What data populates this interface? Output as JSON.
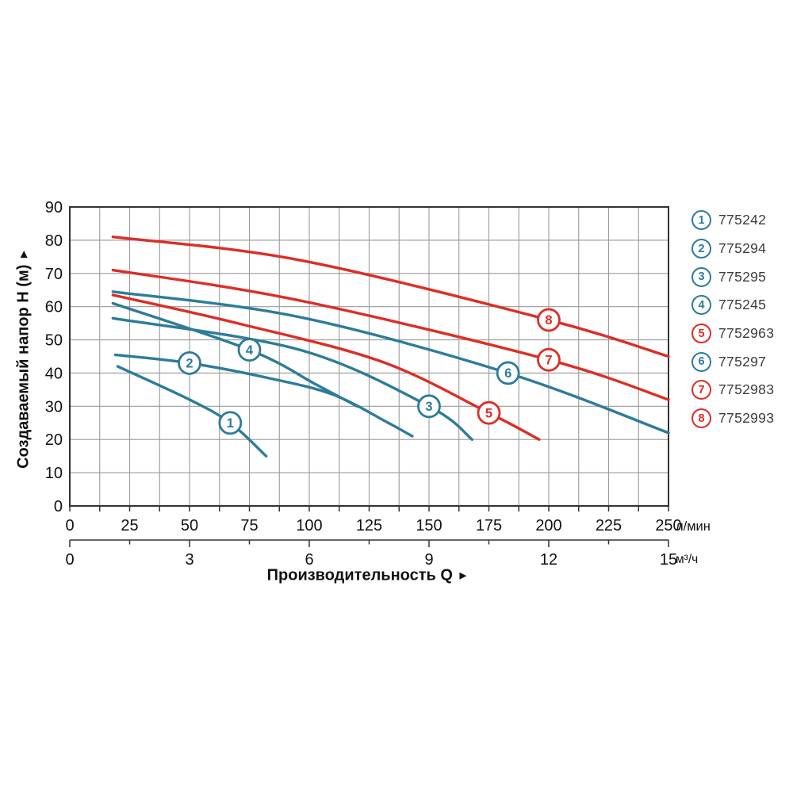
{
  "colors": {
    "teal": "#2d7c99",
    "red": "#dd2d26",
    "grid": "#9a9a9a",
    "axis": "#333333",
    "tick_text": "#111111",
    "legend_text": "#3b3b3b"
  },
  "chart_data": {
    "type": "line",
    "title": "",
    "x_axis": {
      "label": "Производительность Q",
      "arrow": "►",
      "unit_primary": "л/мин",
      "unit_secondary": "м³/ч",
      "range_lmin": [
        0,
        250
      ],
      "ticks_lmin": [
        0,
        25,
        50,
        75,
        100,
        125,
        150,
        175,
        200,
        225,
        250
      ],
      "minor_step_lmin": 12.5,
      "range_m3h": [
        0,
        15
      ],
      "ticks_m3h": [
        0,
        3,
        6,
        9,
        12,
        15
      ],
      "minor_step_m3h": 1.5,
      "grid": true
    },
    "y_axis": {
      "label": "Создаваемый напор H (м)",
      "arrow": "►",
      "range": [
        0,
        90
      ],
      "ticks": [
        0,
        10,
        20,
        30,
        40,
        50,
        60,
        70,
        80,
        90
      ],
      "grid": true
    },
    "series": [
      {
        "num": "1",
        "model": "775242",
        "color": "teal",
        "points": [
          [
            20,
            42
          ],
          [
            50,
            32
          ],
          [
            67,
            25
          ],
          [
            82,
            15
          ]
        ],
        "label_at": [
          67,
          25
        ]
      },
      {
        "num": "2",
        "model": "775294",
        "color": "teal",
        "points": [
          [
            19,
            45.5
          ],
          [
            50,
            43
          ],
          [
            83,
            38.5
          ],
          [
            110,
            33.5
          ],
          [
            133,
            25
          ],
          [
            143,
            21
          ]
        ],
        "label_at": [
          50,
          43
        ]
      },
      {
        "num": "3",
        "model": "775295",
        "color": "teal",
        "points": [
          [
            18,
            56.5
          ],
          [
            96,
            47
          ],
          [
            150,
            30
          ],
          [
            168,
            20
          ]
        ],
        "label_at": [
          150,
          30
        ]
      },
      {
        "num": "4",
        "model": "775245",
        "color": "teal",
        "points": [
          [
            18,
            61
          ],
          [
            75,
            47
          ],
          [
            103,
            36.5
          ],
          [
            120,
            30
          ]
        ],
        "label_at": [
          75,
          47
        ]
      },
      {
        "num": "5",
        "model": "7752963",
        "color": "red",
        "points": [
          [
            18,
            63.5
          ],
          [
            70,
            55
          ],
          [
            130,
            43.5
          ],
          [
            175,
            28
          ],
          [
            196,
            20
          ]
        ],
        "label_at": [
          175,
          28
        ]
      },
      {
        "num": "6",
        "model": "775297",
        "color": "teal",
        "points": [
          [
            18,
            64.5
          ],
          [
            95,
            57
          ],
          [
            183,
            40
          ],
          [
            250,
            22
          ]
        ],
        "label_at": [
          183,
          40
        ]
      },
      {
        "num": "7",
        "model": "7752983",
        "color": "red",
        "points": [
          [
            18,
            71
          ],
          [
            95,
            62
          ],
          [
            200,
            44
          ],
          [
            250,
            32
          ]
        ],
        "label_at": [
          200,
          44
        ]
      },
      {
        "num": "8",
        "model": "7752993",
        "color": "red",
        "points": [
          [
            18,
            81
          ],
          [
            96,
            74
          ],
          [
            200,
            56
          ],
          [
            250,
            45
          ]
        ],
        "label_at": [
          200,
          56
        ]
      }
    ]
  },
  "legend": {
    "entries": [
      {
        "num": "1",
        "model": "775242",
        "color": "teal"
      },
      {
        "num": "2",
        "model": "775294",
        "color": "teal"
      },
      {
        "num": "3",
        "model": "775295",
        "color": "teal"
      },
      {
        "num": "4",
        "model": "775245",
        "color": "teal"
      },
      {
        "num": "5",
        "model": "7752963",
        "color": "red"
      },
      {
        "num": "6",
        "model": "775297",
        "color": "teal"
      },
      {
        "num": "7",
        "model": "7752983",
        "color": "red"
      },
      {
        "num": "8",
        "model": "7752993",
        "color": "red"
      }
    ]
  }
}
